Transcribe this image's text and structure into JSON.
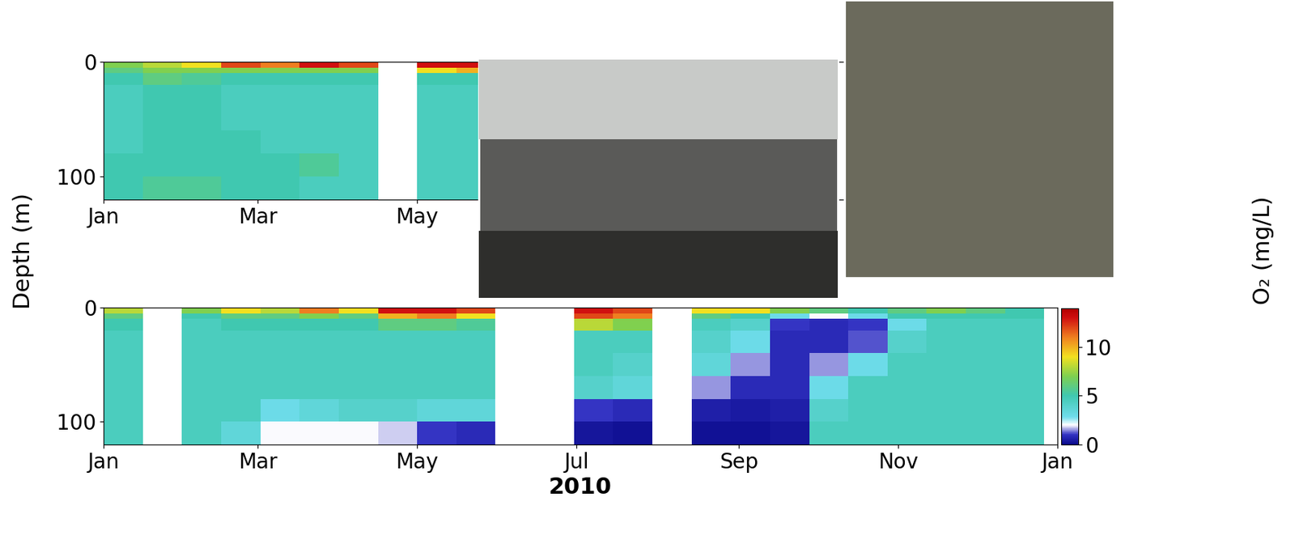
{
  "y_label": "Depth (m)",
  "chart_data": [
    {
      "type": "heatmap",
      "x_edges": [
        0,
        15,
        30,
        45,
        60,
        75,
        90,
        105,
        120,
        135,
        150
      ],
      "y_edges": [
        0,
        5,
        10,
        20,
        40,
        60,
        80,
        100,
        120
      ],
      "cells": [
        [
          7,
          8,
          9,
          12,
          11,
          13,
          12,
          null,
          13,
          13
        ],
        [
          6,
          7,
          7,
          7,
          7,
          7,
          7,
          null,
          9,
          10
        ],
        [
          5,
          6,
          5.5,
          5,
          5,
          5,
          5,
          null,
          5,
          5
        ],
        [
          4.5,
          5,
          5,
          4.5,
          4.5,
          4.5,
          4.5,
          null,
          4.5,
          4.5
        ],
        [
          4.5,
          5,
          5,
          4.5,
          4.5,
          4.5,
          4.5,
          null,
          4.5,
          4.5
        ],
        [
          4.5,
          5,
          5,
          5,
          4.5,
          4.5,
          4.5,
          null,
          4.5,
          4.5
        ],
        [
          5,
          5,
          5,
          5,
          5,
          5.5,
          4.5,
          null,
          4.5,
          4.5
        ],
        [
          5,
          5.5,
          5.5,
          5,
          5,
          4.5,
          4.5,
          null,
          4.5,
          4.5
        ]
      ],
      "xlim": [
        0,
        365
      ],
      "xticks": [
        {
          "value": 0,
          "label": "Jan"
        },
        {
          "value": 59,
          "label": "Mar"
        },
        {
          "value": 120,
          "label": "May"
        }
      ],
      "ylim": [
        120,
        0
      ],
      "yticks": [
        0,
        100
      ]
    },
    {
      "type": "heatmap",
      "x_label": "2010",
      "x_edges": [
        0,
        15,
        30,
        45,
        60,
        75,
        90,
        105,
        120,
        135,
        150,
        165,
        180,
        195,
        210,
        225,
        240,
        255,
        270,
        285,
        300,
        315,
        330,
        345,
        360
      ],
      "y_edges": [
        0,
        5,
        10,
        20,
        40,
        60,
        80,
        100,
        120
      ],
      "cells": [
        [
          8,
          null,
          7,
          9,
          8,
          11,
          9,
          13,
          13,
          12,
          null,
          null,
          13,
          12,
          null,
          9,
          9,
          7,
          6,
          5,
          6,
          7,
          6,
          5
        ],
        [
          6,
          null,
          5,
          6,
          6,
          7,
          6,
          10,
          11,
          9,
          null,
          null,
          12,
          11,
          null,
          6,
          5,
          3,
          2,
          3,
          5,
          5,
          5,
          5
        ],
        [
          5,
          null,
          4.5,
          5,
          5,
          5,
          5,
          6,
          6,
          5.5,
          null,
          null,
          8,
          7,
          null,
          4.5,
          4,
          1,
          0.8,
          1,
          3,
          4.5,
          4.5,
          4.5
        ],
        [
          4.5,
          null,
          4.5,
          4.5,
          4.5,
          4.5,
          4.5,
          4.5,
          4.5,
          4.5,
          null,
          null,
          4.5,
          4.5,
          null,
          4,
          3,
          0.8,
          0.8,
          1.2,
          4,
          4.5,
          4.5,
          4.5
        ],
        [
          4.5,
          null,
          4.5,
          4.5,
          4.5,
          4.5,
          4.5,
          4.5,
          4.5,
          4.5,
          null,
          null,
          4.5,
          4,
          null,
          3.5,
          1.5,
          0.8,
          1.5,
          3,
          4.5,
          4.5,
          4.5,
          4.5
        ],
        [
          4.5,
          null,
          4.5,
          4.5,
          4.5,
          4.5,
          4.5,
          4.5,
          4.5,
          4.5,
          null,
          null,
          4,
          3.5,
          null,
          1.5,
          0.8,
          0.8,
          3,
          4.5,
          4.5,
          4.5,
          4.5,
          4.5
        ],
        [
          4.5,
          null,
          4.5,
          4.5,
          3,
          3.5,
          4,
          4,
          3.5,
          3.5,
          null,
          null,
          1,
          0.8,
          null,
          0.5,
          0.4,
          0.5,
          4,
          4.5,
          4.5,
          4.5,
          4.5,
          4.5
        ],
        [
          4.5,
          null,
          4.5,
          3.5,
          2,
          2,
          2,
          1.8,
          1,
          0.8,
          null,
          null,
          0.3,
          0.2,
          null,
          0.2,
          0.2,
          0.3,
          4.5,
          4.5,
          4.5,
          4.5,
          4.5,
          4.5
        ]
      ],
      "xlim": [
        0,
        365
      ],
      "xticks": [
        {
          "value": 0,
          "label": "Jan"
        },
        {
          "value": 59,
          "label": "Mar"
        },
        {
          "value": 120,
          "label": "May"
        },
        {
          "value": 181,
          "label": "Jul"
        },
        {
          "value": 243,
          "label": "Sep"
        },
        {
          "value": 304,
          "label": "Nov"
        },
        {
          "value": 365,
          "label": "Jan"
        }
      ],
      "ylim": [
        120,
        0
      ],
      "yticks": [
        0,
        100
      ],
      "colorbar": {
        "range": [
          0,
          14
        ],
        "ticks": [
          0,
          5,
          10
        ],
        "label": "O₂ (mg/L)"
      }
    }
  ]
}
